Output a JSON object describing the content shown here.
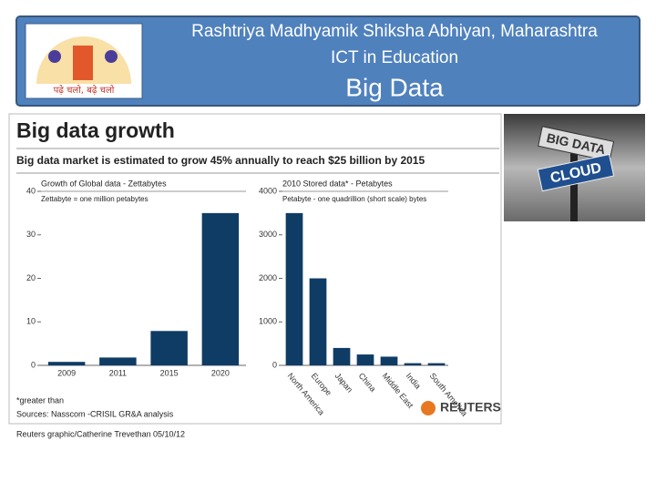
{
  "header": {
    "logo_text": "पढ़े चलो, बढ़े चलो",
    "title": "Rashtriya Madhyamik Shiksha Abhiyan, Maharashtra",
    "subtitle": "ICT in Education",
    "heading": "Big Data"
  },
  "graphic": {
    "title": "Big data growth",
    "subtitle": "Big data market is estimated to grow 45% annually to reach $25 billion by 2015",
    "notes": [
      "*greater than",
      "Sources: Nasscom -CRISIL GR&A analysis"
    ],
    "brand": "REUTERS",
    "credit": "Reuters graphic/Catherine Trevethan",
    "date": "05/10/12"
  },
  "image": {
    "signs": [
      "BIG DATA",
      "CLOUD"
    ]
  },
  "chart_data": [
    {
      "type": "bar",
      "title": "Growth of Global data - Zettabytes",
      "subtitle": "Zettabyte = one million petabytes",
      "categories": [
        "2009",
        "2011",
        "2015",
        "2020"
      ],
      "values": [
        0.8,
        1.8,
        7.9,
        35
      ],
      "color": "#0f3c64",
      "ylim": [
        0,
        40
      ],
      "yticks": [
        0,
        10,
        20,
        30,
        40
      ],
      "grid": false
    },
    {
      "type": "bar",
      "title": "2010 Stored data* - Petabytes",
      "subtitle": "Petabyte - one quadrillion (short scale) bytes",
      "categories": [
        "North America",
        "Europe",
        "Japan",
        "China",
        "Middle East",
        "India",
        "South America"
      ],
      "values": [
        3500,
        2000,
        400,
        250,
        200,
        50,
        50
      ],
      "color": "#0f3c64",
      "ylim": [
        0,
        4000
      ],
      "yticks": [
        0,
        1000,
        2000,
        3000,
        4000
      ],
      "grid": false
    }
  ]
}
